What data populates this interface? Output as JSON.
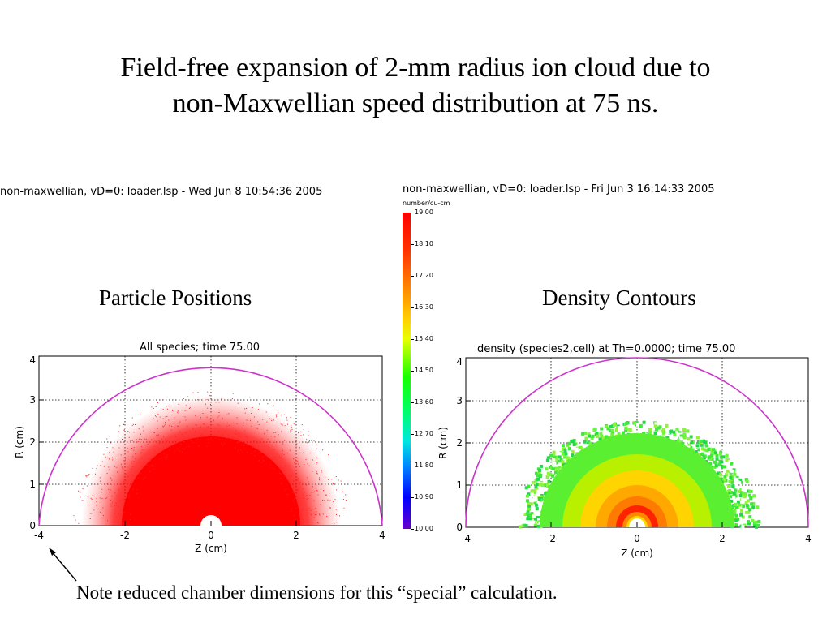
{
  "slide": {
    "title_line1": "Field-free expansion of 2-mm radius ion cloud due to",
    "title_line2": "non-Maxwellian speed distribution at 75 ns.",
    "note": "Note reduced chamber dimensions for this “special” calculation."
  },
  "left_panel": {
    "header": "non-maxwellian, vD=0: loader.lsp - Wed Jun  8 10:54:36 2005",
    "caption": "Particle Positions",
    "plot_title": "All species; time 75.00",
    "xlabel": "Z (cm)",
    "ylabel": "R (cm)",
    "xticks": [
      "-4",
      "-2",
      "0",
      "2",
      "4"
    ],
    "yticks": [
      "0",
      "1",
      "2",
      "3",
      "4"
    ],
    "marker_color": "#ff0000",
    "boundary_color": "#cc33cc"
  },
  "right_panel": {
    "header": "non-maxwellian, vD=0: loader.lsp - Fri Jun  3 16:14:33 2005",
    "caption": "Density Contours",
    "plot_title": "density (species2,cell) at Th=0.0000; time 75.00",
    "xlabel": "Z (cm)",
    "ylabel": "R (cm)",
    "xticks": [
      "-4",
      "-2",
      "0",
      "2",
      "4"
    ],
    "yticks": [
      "0",
      "1",
      "2",
      "3",
      "4"
    ],
    "boundary_color": "#cc33cc"
  },
  "colorbar": {
    "unit": "number/cu-cm",
    "ticks": [
      "19.00",
      "18.10",
      "17.20",
      "16.30",
      "15.40",
      "14.50",
      "13.60",
      "12.70",
      "11.80",
      "10.90",
      "10.00"
    ]
  }
}
